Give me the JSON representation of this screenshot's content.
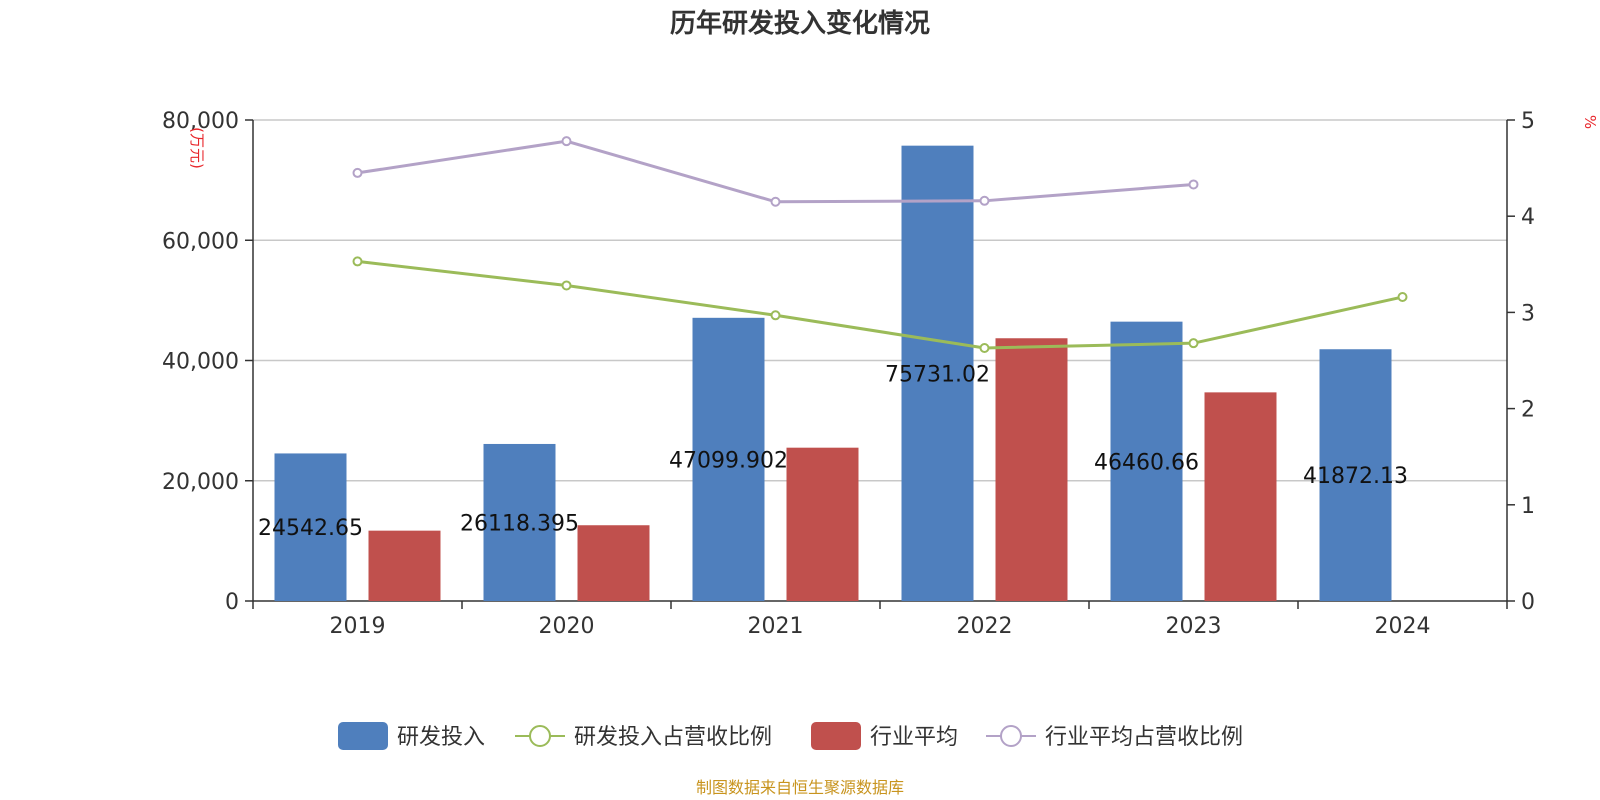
{
  "chart_data": {
    "type": "bar",
    "title": "历年研发投入变化情况",
    "categories": [
      "2019",
      "2020",
      "2021",
      "2022",
      "2023",
      "2024"
    ],
    "y_left": {
      "unit": "(万元)",
      "ticks": [
        "0",
        "20,000",
        "40,000",
        "60,000",
        "80,000"
      ],
      "range": [
        0,
        80000
      ]
    },
    "y_right": {
      "unit": "%",
      "ticks": [
        "0",
        "1",
        "2",
        "3",
        "4",
        "5"
      ],
      "range": [
        0,
        5
      ]
    },
    "series": [
      {
        "name": "研发投入",
        "kind": "bar",
        "axis": "left",
        "color": "#4f7fbd",
        "values": [
          24542.65,
          26118.395,
          47099.902,
          75731.02,
          46460.66,
          41872.13
        ],
        "labels": [
          "24542.65",
          "26118.395",
          "47099.902",
          "75731.02",
          "46460.66",
          "41872.13"
        ]
      },
      {
        "name": "研发投入占营收比例",
        "kind": "line",
        "axis": "right",
        "color": "#9bbb59",
        "values": [
          3.53,
          3.28,
          2.97,
          2.63,
          2.68,
          3.16
        ]
      },
      {
        "name": "行业平均",
        "kind": "bar",
        "axis": "left",
        "color": "#c0504d",
        "values": [
          11700,
          12600,
          25500,
          43700,
          34700,
          null
        ]
      },
      {
        "name": "行业平均占营收比例",
        "kind": "line",
        "axis": "right",
        "color": "#b3a2c7",
        "values": [
          4.45,
          4.78,
          4.15,
          4.16,
          4.33,
          null
        ]
      }
    ],
    "grid": true,
    "legend_position": "bottom"
  },
  "source": "制图数据来自恒生聚源数据库"
}
